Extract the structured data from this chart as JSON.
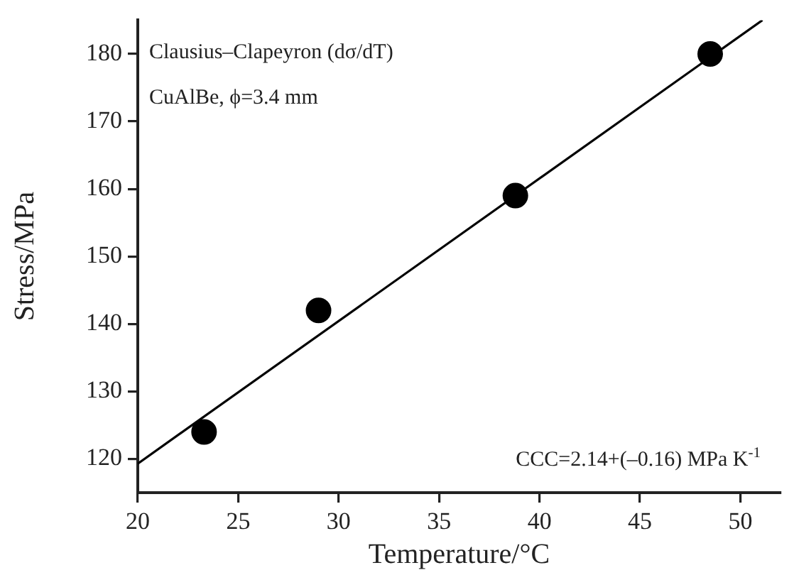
{
  "chart_data": {
    "type": "scatter",
    "xlabel": "Temperature/°C",
    "ylabel": "Stress/MPa",
    "annotations": [
      "Clausius–Clapeyron (dσ/dT)",
      "CuAlBe, ϕ=3.4 mm",
      "CCC=2.14+(–0.16) MPa K$^{-1}$"
    ],
    "series": [
      {
        "color": "#000000",
        "marker": "circle",
        "x": [
          23.3,
          29,
          38.8,
          48.5
        ],
        "values": [
          124,
          142,
          159,
          180
        ]
      },
      {
        "type": "line",
        "color": "#000000",
        "marker": "none",
        "line_style": "solid",
        "x": [
          20,
          51.1
        ],
        "values": [
          119.3,
          185
        ]
      }
    ],
    "xlim": [
      20,
      52
    ],
    "xticks": [
      20,
      25,
      30,
      35,
      40,
      45,
      50
    ],
    "ylim": [
      115,
      185
    ],
    "yticks": [
      120,
      130,
      140,
      150,
      160,
      170,
      180
    ],
    "grid": false,
    "legend": false
  }
}
